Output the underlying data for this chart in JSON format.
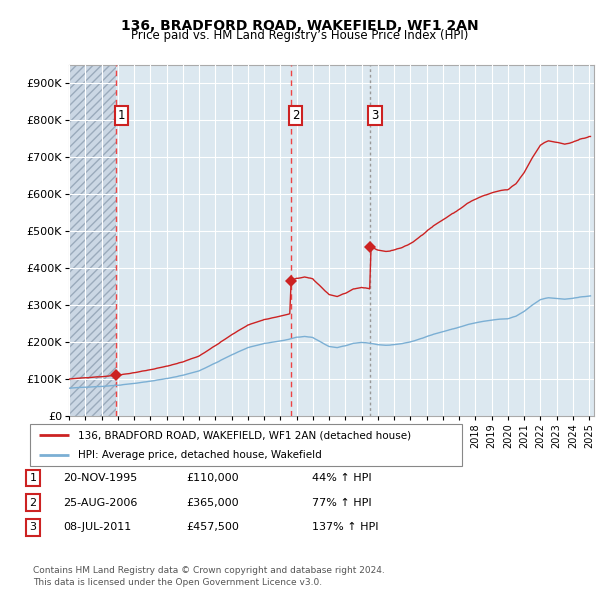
{
  "title": "136, BRADFORD ROAD, WAKEFIELD, WF1 2AN",
  "subtitle": "Price paid vs. HM Land Registry’s House Price Index (HPI)",
  "transactions": [
    {
      "date_num": 1995.917,
      "price": 110000,
      "label": "1",
      "date_str": "20-NOV-1995",
      "pct": "44%"
    },
    {
      "date_num": 2006.644,
      "price": 365000,
      "label": "2",
      "date_str": "25-AUG-2006",
      "pct": "77%"
    },
    {
      "date_num": 2011.519,
      "price": 457500,
      "label": "3",
      "date_str": "08-JUL-2011",
      "pct": "137%"
    }
  ],
  "house_line_color": "#cc2222",
  "hpi_line_color": "#7bafd4",
  "grid_color": "#c8d4e0",
  "vline_color_red": "#ee4444",
  "vline_color_gray": "#999999",
  "bg_color": "#dce8f0",
  "ylim": [
    0,
    950000
  ],
  "xlim_start": 1993.0,
  "xlim_end": 2025.3,
  "yticks": [
    0,
    100000,
    200000,
    300000,
    400000,
    500000,
    600000,
    700000,
    800000,
    900000
  ],
  "ytick_labels": [
    "£0",
    "£100K",
    "£200K",
    "£300K",
    "£400K",
    "£500K",
    "£600K",
    "£700K",
    "£800K",
    "£900K"
  ],
  "xticks": [
    1993,
    1994,
    1995,
    1996,
    1997,
    1998,
    1999,
    2000,
    2001,
    2002,
    2003,
    2004,
    2005,
    2006,
    2007,
    2008,
    2009,
    2010,
    2011,
    2012,
    2013,
    2014,
    2015,
    2016,
    2017,
    2018,
    2019,
    2020,
    2021,
    2022,
    2023,
    2024,
    2025
  ],
  "legend_house": "136, BRADFORD ROAD, WAKEFIELD, WF1 2AN (detached house)",
  "legend_hpi": "HPI: Average price, detached house, Wakefield",
  "footer": "Contains HM Land Registry data © Crown copyright and database right 2024.\nThis data is licensed under the Open Government Licence v3.0."
}
